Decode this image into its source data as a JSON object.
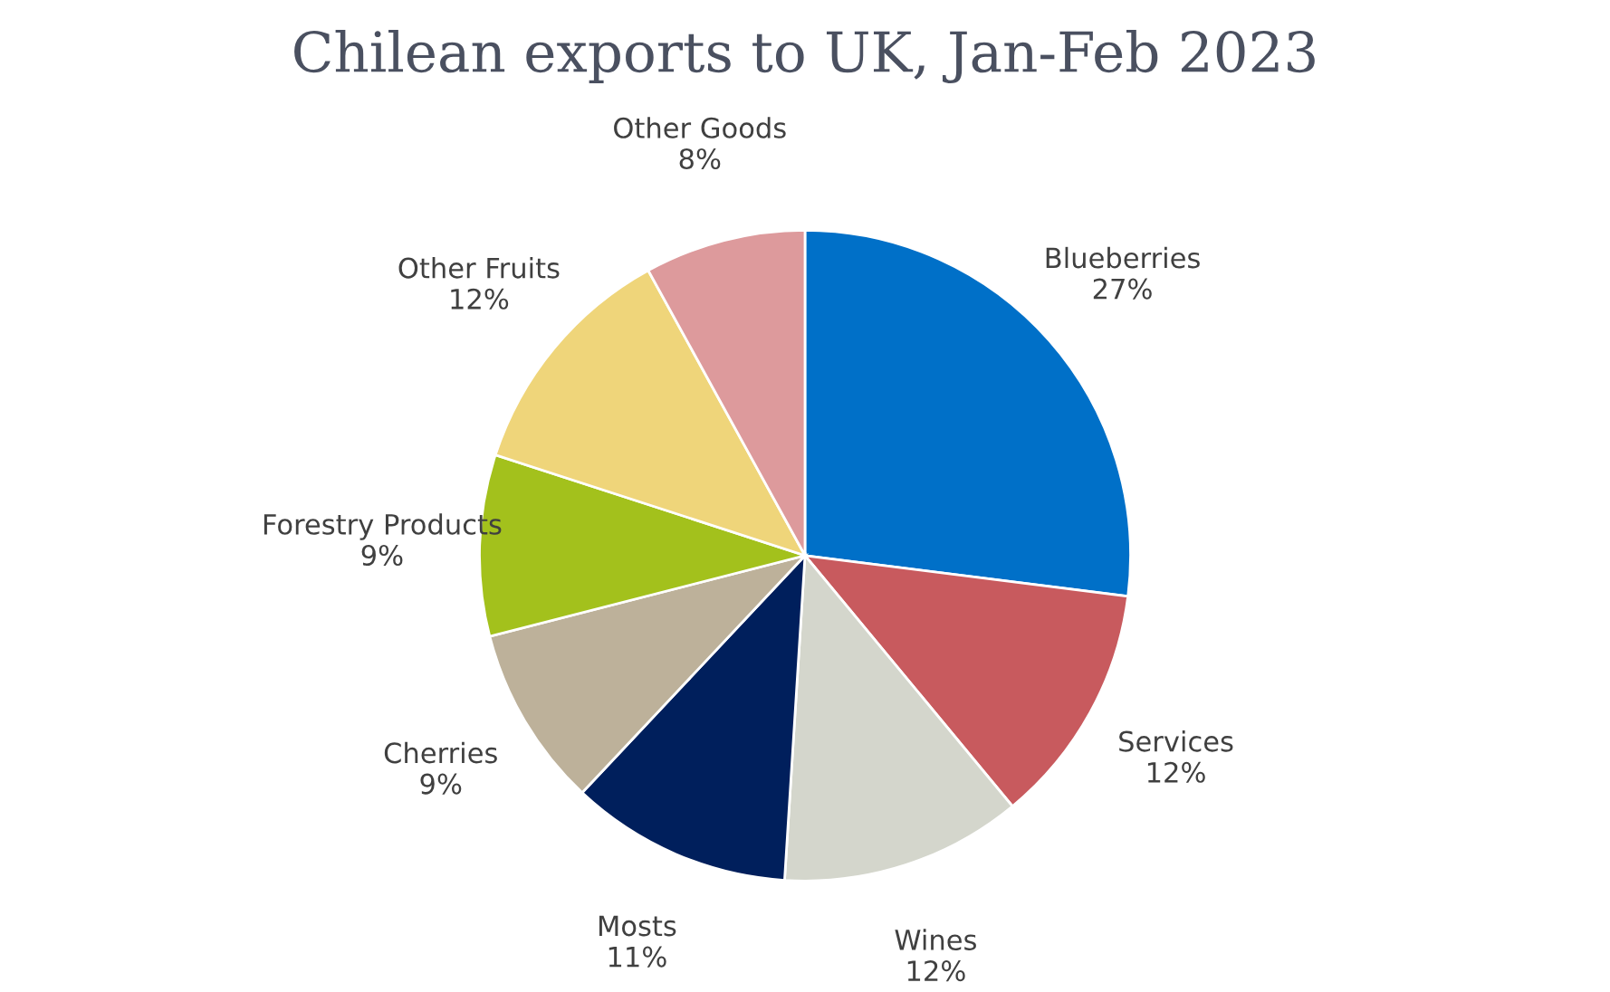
{
  "chart_data": {
    "type": "pie",
    "title": "Chilean exports to UK, Jan-Feb 2023",
    "categories": [
      "Blueberries",
      "Services",
      "Wines",
      "Mosts",
      "Cherries",
      "Forestry Products",
      "Other Fruits",
      "Other Goods"
    ],
    "values": [
      27,
      12,
      12,
      11,
      9,
      9,
      12,
      8
    ],
    "value_labels": [
      "27%",
      "12%",
      "12%",
      "11%",
      "9%",
      "9%",
      "12%",
      "8%"
    ],
    "colors": [
      "#0070c8",
      "#c85a5e",
      "#d4d6cc",
      "#001f5c",
      "#bdb19a",
      "#a3c11c",
      "#efd57a",
      "#dd9a9c"
    ]
  }
}
